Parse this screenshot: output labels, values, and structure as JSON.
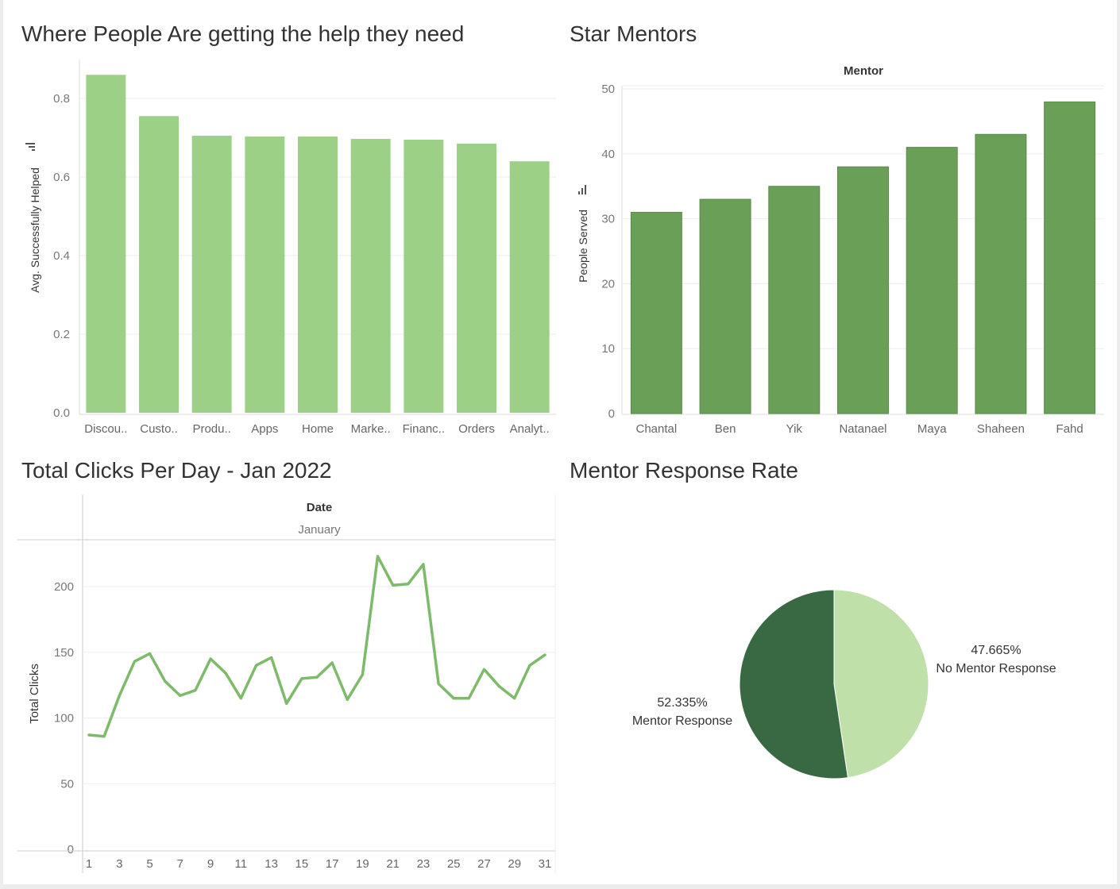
{
  "chart_data": [
    {
      "type": "bar",
      "title": "Where People Are getting the help they need",
      "xlabel": "",
      "ylabel": "Avg. Successfully Helped",
      "ylim": [
        0,
        0.9
      ],
      "yticks": [
        "0.0",
        "0.2",
        "0.4",
        "0.6",
        "0.8"
      ],
      "categories": [
        "Discou..",
        "Custo..",
        "Produ..",
        "Apps",
        "Home",
        "Marke..",
        "Financ..",
        "Orders",
        "Analyt.."
      ],
      "values": [
        0.86,
        0.755,
        0.705,
        0.703,
        0.703,
        0.697,
        0.695,
        0.685,
        0.64
      ],
      "color": "#9cd087",
      "grid": true
    },
    {
      "type": "bar",
      "title": "Star Mentors",
      "header": "Mentor",
      "xlabel": "",
      "ylabel": "People Served",
      "ylim": [
        0,
        50
      ],
      "yticks": [
        "0",
        "10",
        "20",
        "30",
        "40",
        "50"
      ],
      "categories": [
        "Chantal",
        "Ben",
        "Yik",
        "Natanael",
        "Maya",
        "Shaheen",
        "Fahd"
      ],
      "values": [
        31,
        33,
        35,
        38,
        41,
        43,
        48
      ],
      "color": "#6a9f57",
      "grid": true
    },
    {
      "type": "line",
      "title": "Total Clicks Per Day - Jan 2022",
      "header": "Date",
      "subheader": "January",
      "xlabel": "",
      "ylabel": "Total Clicks",
      "ylim": [
        0,
        230
      ],
      "yticks": [
        "0",
        "50",
        "100",
        "150",
        "200"
      ],
      "xticks": [
        "1",
        "3",
        "5",
        "7",
        "9",
        "11",
        "13",
        "15",
        "17",
        "19",
        "21",
        "23",
        "25",
        "27",
        "29",
        "31"
      ],
      "x": [
        1,
        2,
        3,
        4,
        5,
        6,
        7,
        8,
        9,
        10,
        11,
        12,
        13,
        14,
        15,
        16,
        17,
        18,
        19,
        20,
        21,
        22,
        23,
        24,
        25,
        26,
        27,
        28,
        29,
        30,
        31
      ],
      "y": [
        87,
        86,
        117,
        143,
        149,
        128,
        117,
        121,
        145,
        134,
        115,
        140,
        146,
        111,
        130,
        131,
        142,
        114,
        133,
        223,
        201,
        202,
        217,
        126,
        115,
        115,
        137,
        124,
        115,
        140,
        148
      ],
      "color": "#7dbb6a",
      "grid": true
    },
    {
      "type": "pie",
      "title": "Mentor Response Rate",
      "series": [
        {
          "name": "No Mentor Response",
          "value": 47.665,
          "label": "47.665%",
          "color": "#bfe0a9"
        },
        {
          "name": "Mentor Response",
          "value": 52.335,
          "label": "52.335%",
          "color": "#386942"
        }
      ]
    }
  ]
}
